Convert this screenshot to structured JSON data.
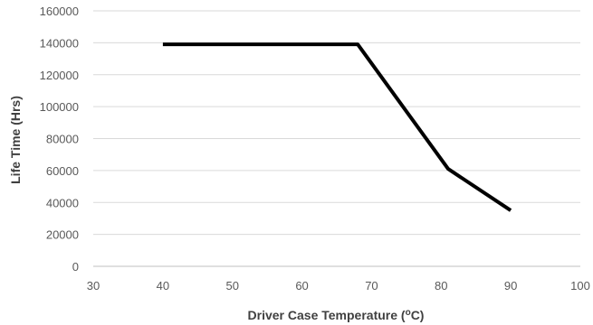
{
  "chart_data": {
    "type": "line",
    "title": "",
    "xlabel": "Driver Case Temperature (",
    "xlabel_superscript": "o",
    "xlabel_unit": "C)",
    "ylabel": "Life Time (Hrs)",
    "xlim": [
      30,
      100
    ],
    "ylim": [
      0,
      160000
    ],
    "x_ticks": [
      30,
      40,
      50,
      60,
      70,
      80,
      90,
      100
    ],
    "y_ticks": [
      0,
      20000,
      40000,
      60000,
      80000,
      100000,
      120000,
      140000,
      160000
    ],
    "grid": "horizontal",
    "series": [
      {
        "x": [
          40,
          68,
          81,
          90
        ],
        "values": [
          139000,
          139000,
          61000,
          35000
        ],
        "color": "#000000"
      }
    ]
  }
}
